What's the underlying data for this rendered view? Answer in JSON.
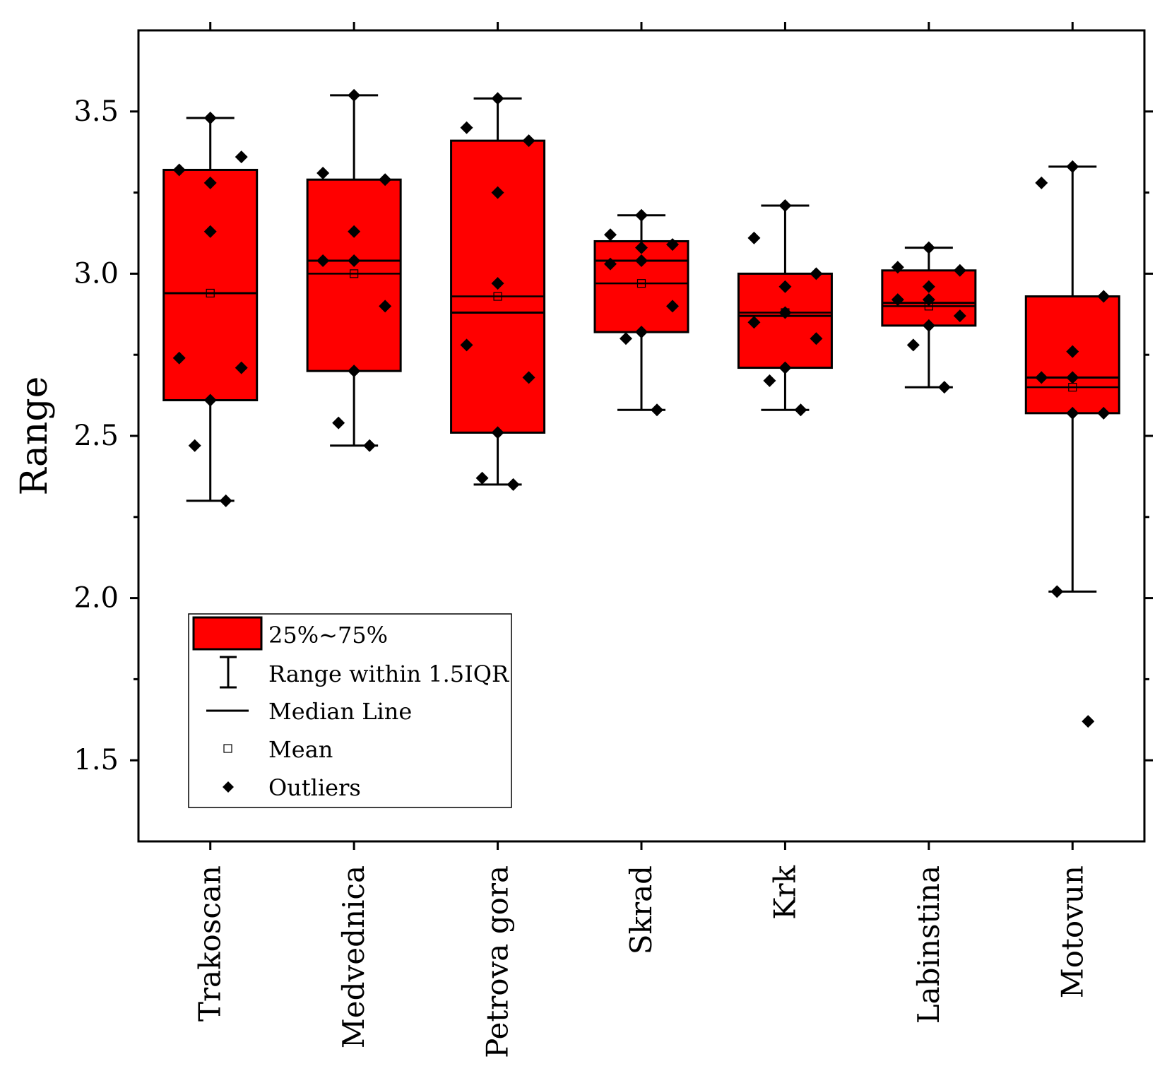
{
  "chart_data": {
    "type": "box",
    "title": "",
    "xlabel": "",
    "ylabel": "Range",
    "ylim": [
      1.25,
      3.75
    ],
    "yticks": [
      1.5,
      2.0,
      2.5,
      3.0,
      3.5
    ],
    "ytick_labels": [
      "1.5",
      "2.0",
      "2.5",
      "3.0",
      "3.5"
    ],
    "minor_yticks": [
      1.75,
      2.25,
      2.75,
      3.25
    ],
    "categories": [
      "Trakoscan",
      "Medvednica",
      "Petrova gora",
      "Skrad",
      "Krk",
      "Labinstina",
      "Motovun"
    ],
    "box_color": "#ff0000",
    "boxes": [
      {
        "q1": 2.61,
        "median": 2.94,
        "q3": 3.32,
        "mean": 2.94,
        "whisker_low": 2.3,
        "whisker_high": 3.48,
        "points": [
          3.48,
          3.32,
          3.36,
          3.28,
          3.13,
          2.74,
          2.71,
          2.61,
          2.47,
          2.3
        ]
      },
      {
        "q1": 2.7,
        "median": 3.04,
        "q3": 3.29,
        "mean": 3.0,
        "whisker_low": 2.47,
        "whisker_high": 3.55,
        "points": [
          3.55,
          3.31,
          3.29,
          3.13,
          3.04,
          3.04,
          2.9,
          2.7,
          2.54,
          2.47
        ]
      },
      {
        "q1": 2.51,
        "median": 2.88,
        "q3": 3.41,
        "mean": 2.93,
        "whisker_low": 2.35,
        "whisker_high": 3.54,
        "points": [
          3.54,
          3.45,
          3.41,
          3.25,
          2.97,
          2.78,
          2.68,
          2.51,
          2.37,
          2.35
        ]
      },
      {
        "q1": 2.82,
        "median": 3.04,
        "q3": 3.1,
        "mean": 2.97,
        "whisker_low": 2.58,
        "whisker_high": 3.18,
        "points": [
          3.18,
          3.12,
          3.09,
          3.08,
          3.04,
          3.03,
          2.9,
          2.82,
          2.8,
          2.58
        ]
      },
      {
        "q1": 2.71,
        "median": 2.87,
        "q3": 3.0,
        "mean": 2.88,
        "whisker_low": 2.58,
        "whisker_high": 3.21,
        "points": [
          3.21,
          3.11,
          3.0,
          2.96,
          2.88,
          2.85,
          2.8,
          2.71,
          2.67,
          2.58
        ]
      },
      {
        "q1": 2.84,
        "median": 2.91,
        "q3": 3.01,
        "mean": 2.9,
        "whisker_low": 2.65,
        "whisker_high": 3.08,
        "points": [
          3.08,
          3.02,
          3.01,
          2.96,
          2.92,
          2.92,
          2.87,
          2.84,
          2.78,
          2.65
        ]
      },
      {
        "q1": 2.57,
        "median": 2.68,
        "q3": 2.93,
        "mean": 2.65,
        "whisker_low": 2.02,
        "whisker_high": 3.33,
        "points": [
          3.33,
          3.28,
          2.93,
          2.76,
          2.68,
          2.68,
          2.57,
          2.57,
          2.02,
          1.62
        ]
      }
    ],
    "legend": {
      "position": "bottom-left",
      "entries": [
        "25%~75%",
        "Range within 1.5IQR",
        "Median Line",
        "Mean",
        "Outliers"
      ]
    }
  }
}
